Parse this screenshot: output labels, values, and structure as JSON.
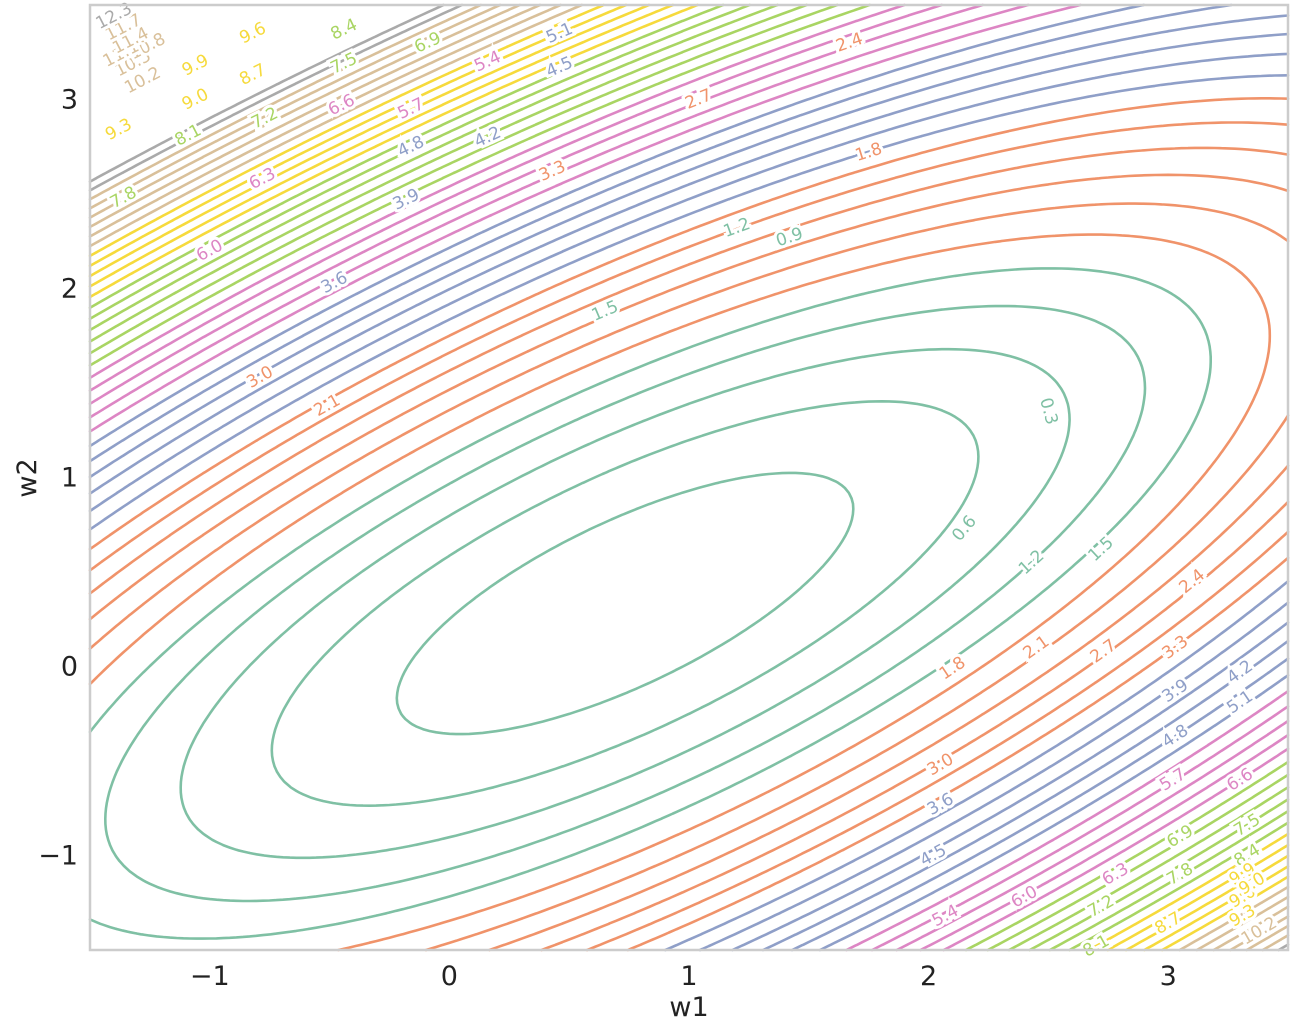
{
  "chart_data": {
    "type": "contour",
    "title": "",
    "xlabel": "w1",
    "ylabel": "w2",
    "xlim": [
      -1.5,
      3.5
    ],
    "ylim": [
      -1.5,
      3.5
    ],
    "x_ticks": [
      -1,
      0,
      1,
      2,
      3
    ],
    "y_ticks": [
      -1,
      0,
      1,
      2,
      3
    ],
    "x_tick_labels": [
      "−1",
      "0",
      "1",
      "2",
      "3"
    ],
    "y_tick_labels": [
      "−1",
      "0",
      "1",
      "2",
      "3"
    ],
    "grid": false,
    "function": {
      "form": "a*w1^2 + b*w1*w2 + c*w2^2 + d*w1 + e*w2 + f",
      "a": 0.5,
      "b": -1.0,
      "c": 0.95,
      "d": -0.4,
      "e": 0.1,
      "f": 0.215
    },
    "levels": [
      0.3,
      0.6,
      0.9,
      1.2,
      1.5,
      1.8,
      2.1,
      2.4,
      2.7,
      3.0,
      3.3,
      3.6,
      3.9,
      4.2,
      4.5,
      4.8,
      5.1,
      5.4,
      5.7,
      6.0,
      6.3,
      6.6,
      6.9,
      7.2,
      7.5,
      7.8,
      8.1,
      8.4,
      8.7,
      9.0,
      9.3,
      9.6,
      9.9,
      10.2,
      10.5,
      10.8,
      11.1,
      11.4,
      11.7,
      12.0,
      12.3
    ],
    "level_colors": [
      {
        "max": 1.5,
        "color": "#7fc0a4"
      },
      {
        "max": 3.3,
        "color": "#f0936a"
      },
      {
        "max": 5.1,
        "color": "#8f9fc8"
      },
      {
        "max": 6.6,
        "color": "#dd86c4"
      },
      {
        "max": 8.4,
        "color": "#a9d563"
      },
      {
        "max": 9.9,
        "color": "#f6da3c"
      },
      {
        "max": 11.7,
        "color": "#d9c09a"
      },
      {
        "max": 99,
        "color": "#aaaaaa"
      }
    ],
    "labels": [
      {
        "text": "0.3",
        "w1": 2.5,
        "w2": 1.35
      },
      {
        "text": "0.6",
        "w1": 2.15,
        "w2": 0.73
      },
      {
        "text": "0.9",
        "w1": 1.42,
        "w2": 2.27
      },
      {
        "text": "1.2",
        "w1": 1.2,
        "w2": 2.32
      },
      {
        "text": "1.5",
        "w1": 0.65,
        "w2": 1.88
      },
      {
        "text": "1.2",
        "w1": 2.43,
        "w2": 0.55
      },
      {
        "text": "1.5",
        "w1": 2.72,
        "w2": 0.62
      },
      {
        "text": "1.8",
        "w1": 1.75,
        "w2": 2.72
      },
      {
        "text": "2.4",
        "w1": 1.67,
        "w2": 3.3
      },
      {
        "text": "2.7",
        "w1": 1.04,
        "w2": 3.0
      },
      {
        "text": "3.3",
        "w1": 0.43,
        "w2": 2.62
      },
      {
        "text": "2.1",
        "w1": -0.51,
        "w2": 1.38
      },
      {
        "text": "3.0",
        "w1": -0.79,
        "w2": 1.53
      },
      {
        "text": "1.8",
        "w1": 2.1,
        "w2": -0.01
      },
      {
        "text": "2.1",
        "w1": 2.45,
        "w2": 0.1
      },
      {
        "text": "2.7",
        "w1": 2.73,
        "w2": 0.08
      },
      {
        "text": "2.4",
        "w1": 3.1,
        "w2": 0.45
      },
      {
        "text": "3.3",
        "w1": 3.03,
        "w2": 0.1
      },
      {
        "text": "3.0",
        "w1": 2.05,
        "w2": -0.52
      },
      {
        "text": "3.6",
        "w1": 2.05,
        "w2": -0.73
      },
      {
        "text": "3.9",
        "w1": 3.03,
        "w2": -0.13
      },
      {
        "text": "4.2",
        "w1": 3.3,
        "w2": -0.03
      },
      {
        "text": "4.8",
        "w1": 3.03,
        "w2": -0.37
      },
      {
        "text": "5.1",
        "w1": 3.3,
        "w2": -0.19
      },
      {
        "text": "4.5",
        "w1": 2.02,
        "w2": -1.0
      },
      {
        "text": "3.6",
        "w1": -0.48,
        "w2": 2.03
      },
      {
        "text": "3.9",
        "w1": -0.18,
        "w2": 2.47
      },
      {
        "text": "4.2",
        "w1": 0.16,
        "w2": 2.8
      },
      {
        "text": "4.5",
        "w1": 0.46,
        "w2": 3.17
      },
      {
        "text": "4.8",
        "w1": -0.16,
        "w2": 2.75
      },
      {
        "text": "5.1",
        "w1": 0.46,
        "w2": 3.35
      },
      {
        "text": "5.4",
        "w1": 0.16,
        "w2": 3.2
      },
      {
        "text": "5.7",
        "w1": -0.16,
        "w2": 2.95
      },
      {
        "text": "6.0",
        "w1": -1.0,
        "w2": 2.2
      },
      {
        "text": "6.3",
        "w1": -0.78,
        "w2": 2.58
      },
      {
        "text": "6.6",
        "w1": -0.45,
        "w2": 2.97
      },
      {
        "text": "5.4",
        "w1": 2.07,
        "w2": -1.32
      },
      {
        "text": "5.7",
        "w1": 3.02,
        "w2": -0.6
      },
      {
        "text": "6.0",
        "w1": 2.4,
        "w2": -1.22
      },
      {
        "text": "6.3",
        "w1": 2.78,
        "w2": -1.1
      },
      {
        "text": "6.6",
        "w1": 3.3,
        "w2": -0.6
      },
      {
        "text": "6.9",
        "w1": 3.05,
        "w2": -0.9
      },
      {
        "text": "7.5",
        "w1": 3.33,
        "w2": -0.84
      },
      {
        "text": "7.2",
        "w1": 2.72,
        "w2": -1.27
      },
      {
        "text": "7.8",
        "w1": 3.05,
        "w2": -1.1
      },
      {
        "text": "8.4",
        "w1": 3.33,
        "w2": -1.0
      },
      {
        "text": "8.1",
        "w1": 2.7,
        "w2": -1.48
      },
      {
        "text": "8.7",
        "w1": 3.0,
        "w2": -1.36
      },
      {
        "text": "6.9",
        "w1": -0.09,
        "w2": 3.3
      },
      {
        "text": "7.2",
        "w1": -0.77,
        "w2": 2.9
      },
      {
        "text": "7.5",
        "w1": -0.44,
        "w2": 3.19
      },
      {
        "text": "8.4",
        "w1": -0.44,
        "w2": 3.37
      },
      {
        "text": "8.1",
        "w1": -1.09,
        "w2": 2.81
      },
      {
        "text": "7.8",
        "w1": -1.36,
        "w2": 2.48
      },
      {
        "text": "8.7",
        "w1": -0.82,
        "w2": 3.13
      },
      {
        "text": "9.0",
        "w1": -1.06,
        "w2": 3.0
      },
      {
        "text": "9.3",
        "w1": -1.38,
        "w2": 2.84
      },
      {
        "text": "9.6",
        "w1": -0.82,
        "w2": 3.35
      },
      {
        "text": "9.9",
        "w1": -1.06,
        "w2": 3.18
      },
      {
        "text": "9.9",
        "w1": 3.31,
        "w2": -1.1
      },
      {
        "text": "9.6",
        "w1": 3.31,
        "w2": -1.22
      },
      {
        "text": "9.3",
        "w1": 3.31,
        "w2": -1.32
      },
      {
        "text": "9.0",
        "w1": 3.35,
        "w2": -1.15
      },
      {
        "text": "10.2",
        "w1": 3.38,
        "w2": -1.4
      },
      {
        "text": "10.2",
        "w1": -1.28,
        "w2": 3.1
      },
      {
        "text": "10.5",
        "w1": -1.32,
        "w2": 3.19
      },
      {
        "text": "10.8",
        "w1": -1.26,
        "w2": 3.28
      },
      {
        "text": "11.1",
        "w1": -1.37,
        "w2": 3.24
      },
      {
        "text": "11.4",
        "w1": -1.33,
        "w2": 3.31
      },
      {
        "text": "11.7",
        "w1": -1.36,
        "w2": 3.38
      },
      {
        "text": "12.3",
        "w1": -1.4,
        "w2": 3.44
      }
    ]
  }
}
